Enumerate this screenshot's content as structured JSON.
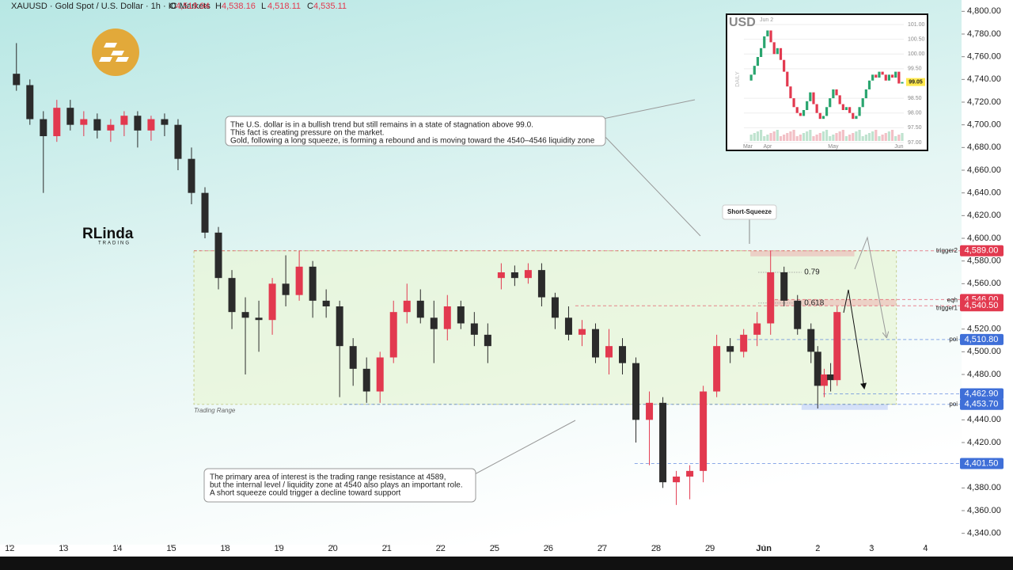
{
  "chart_data": {
    "type": "candlestick",
    "header": {
      "symbol": "XAUUSD · Gold Spot / U.S. Dollar · 1h · IC Markets",
      "ohlc": [
        {
          "key": "O",
          "value": "4,519.94"
        },
        {
          "key": "H",
          "value": "4,538.16"
        },
        {
          "key": "L",
          "value": "4,518.11"
        },
        {
          "key": "C",
          "value": "4,535.11"
        }
      ]
    },
    "brand": {
      "name": "RLinda",
      "sub": "TRADING"
    },
    "up_color": "#e2394f",
    "down_color": "#2b2b2b",
    "xlim": [
      -0.18,
      17.67
    ],
    "ylim": [
      4330,
      4810
    ],
    "xticks": [
      {
        "value": 0,
        "label": "12"
      },
      {
        "value": 1,
        "label": "13"
      },
      {
        "value": 2,
        "label": "14"
      },
      {
        "value": 3,
        "label": "15"
      },
      {
        "value": 4,
        "label": "18"
      },
      {
        "value": 5,
        "label": "19"
      },
      {
        "value": 6,
        "label": "20"
      },
      {
        "value": 7,
        "label": "21"
      },
      {
        "value": 8,
        "label": "22"
      },
      {
        "value": 9,
        "label": "25"
      },
      {
        "value": 10,
        "label": "26"
      },
      {
        "value": 11,
        "label": "27"
      },
      {
        "value": 12,
        "label": "28"
      },
      {
        "value": 13,
        "label": "29"
      },
      {
        "value": 14,
        "label": "Jun"
      },
      {
        "value": 15,
        "label": "2"
      },
      {
        "value": 16,
        "label": "3"
      },
      {
        "value": 17,
        "label": "4"
      }
    ],
    "yticks": [
      {
        "value": 4800,
        "label": "4,800.00"
      },
      {
        "value": 4780,
        "label": "4,780.00"
      },
      {
        "value": 4760,
        "label": "4,760.00"
      },
      {
        "value": 4740,
        "label": "4,740.00"
      },
      {
        "value": 4720,
        "label": "4,720.00"
      },
      {
        "value": 4700,
        "label": "4,700.00"
      },
      {
        "value": 4680,
        "label": "4,680.00"
      },
      {
        "value": 4660,
        "label": "4,660.00"
      },
      {
        "value": 4640,
        "label": "4,640.00"
      },
      {
        "value": 4620,
        "label": "4,620.00"
      },
      {
        "value": 4600,
        "label": "4,600.00"
      },
      {
        "value": 4580,
        "label": "4,580.00"
      },
      {
        "value": 4560,
        "label": "4,560.00"
      },
      {
        "value": 4540,
        "label": "4,540.00"
      },
      {
        "value": 4520,
        "label": "4,520.00"
      },
      {
        "value": 4500,
        "label": "4,500.00"
      },
      {
        "value": 4480,
        "label": "4,480.00"
      },
      {
        "value": 4460,
        "label": "4,460.00"
      },
      {
        "value": 4440,
        "label": "4,440.00"
      },
      {
        "value": 4420,
        "label": "4,420.00"
      },
      {
        "value": 4400,
        "label": "4,400.00"
      },
      {
        "value": 4380,
        "label": "4,380.00"
      },
      {
        "value": 4360,
        "label": "4,360.00"
      },
      {
        "value": 4340,
        "label": "4,340.00"
      }
    ],
    "candles": {
      "x": [
        0.125,
        0.375,
        0.625,
        0.875,
        1.125,
        1.375,
        1.625,
        1.875,
        2.125,
        2.375,
        2.625,
        2.875,
        3.125,
        3.375,
        3.625,
        3.875,
        4.125,
        4.375,
        4.625,
        4.875,
        5.125,
        5.375,
        5.625,
        5.875,
        6.125,
        6.375,
        6.625,
        6.875,
        7.125,
        7.375,
        7.625,
        7.875,
        8.125,
        8.375,
        8.625,
        8.875,
        9.125,
        9.375,
        9.625,
        9.875,
        10.125,
        10.375,
        10.625,
        10.875,
        11.125,
        11.375,
        11.625,
        11.875,
        12.125,
        12.375,
        12.625,
        12.875,
        13.125,
        13.375,
        13.625,
        13.875,
        14.125,
        14.375,
        14.625,
        14.875,
        15,
        15.12,
        15.24,
        15.36
      ],
      "ohlc": [
        [
          4745,
          4772,
          4730,
          4735
        ],
        [
          4735,
          4740,
          4700,
          4705
        ],
        [
          4705,
          4712,
          4640,
          4690
        ],
        [
          4690,
          4722,
          4685,
          4715
        ],
        [
          4715,
          4722,
          4695,
          4700
        ],
        [
          4700,
          4712,
          4690,
          4705
        ],
        [
          4705,
          4710,
          4688,
          4695
        ],
        [
          4695,
          4705,
          4685,
          4700
        ],
        [
          4700,
          4712,
          4690,
          4708
        ],
        [
          4708,
          4712,
          4680,
          4695
        ],
        [
          4695,
          4708,
          4686,
          4705
        ],
        [
          4705,
          4710,
          4690,
          4700
        ],
        [
          4700,
          4705,
          4660,
          4670
        ],
        [
          4670,
          4680,
          4630,
          4640
        ],
        [
          4640,
          4645,
          4600,
          4605
        ],
        [
          4605,
          4610,
          4555,
          4565
        ],
        [
          4565,
          4572,
          4520,
          4535
        ],
        [
          4535,
          4548,
          4480,
          4530
        ],
        [
          4530,
          4545,
          4500,
          4528
        ],
        [
          4528,
          4565,
          4515,
          4560
        ],
        [
          4560,
          4585,
          4540,
          4550
        ],
        [
          4550,
          4589,
          4545,
          4575
        ],
        [
          4575,
          4580,
          4530,
          4545
        ],
        [
          4545,
          4555,
          4530,
          4540
        ],
        [
          4540,
          4545,
          4460,
          4505
        ],
        [
          4505,
          4512,
          4470,
          4485
        ],
        [
          4485,
          4495,
          4455,
          4465
        ],
        [
          4465,
          4500,
          4455,
          4495
        ],
        [
          4495,
          4545,
          4490,
          4535
        ],
        [
          4535,
          4560,
          4525,
          4545
        ],
        [
          4545,
          4555,
          4525,
          4530
        ],
        [
          4530,
          4545,
          4490,
          4520
        ],
        [
          4520,
          4550,
          4510,
          4540
        ],
        [
          4540,
          4545,
          4520,
          4525
        ],
        [
          4525,
          4535,
          4505,
          4515
        ],
        [
          4515,
          4525,
          4490,
          4505
        ],
        [
          4565,
          4578,
          4555,
          4570
        ],
        [
          4570,
          4576,
          4558,
          4565
        ],
        [
          4565,
          4578,
          4560,
          4572
        ],
        [
          4572,
          4578,
          4540,
          4548
        ],
        [
          4548,
          4552,
          4520,
          4530
        ],
        [
          4530,
          4540,
          4510,
          4515
        ],
        [
          4515,
          4528,
          4505,
          4520
        ],
        [
          4520,
          4525,
          4490,
          4495
        ],
        [
          4495,
          4520,
          4480,
          4505
        ],
        [
          4505,
          4512,
          4480,
          4490
        ],
        [
          4490,
          4495,
          4420,
          4440
        ],
        [
          4440,
          4465,
          4400,
          4455
        ],
        [
          4455,
          4460,
          4380,
          4385
        ],
        [
          4385,
          4395,
          4365,
          4390
        ],
        [
          4390,
          4400,
          4370,
          4395
        ],
        [
          4395,
          4470,
          4385,
          4465
        ],
        [
          4465,
          4515,
          4460,
          4505
        ],
        [
          4505,
          4512,
          4490,
          4500
        ],
        [
          4500,
          4520,
          4495,
          4515
        ],
        [
          4515,
          4535,
          4505,
          4525
        ],
        [
          4525,
          4589,
          4515,
          4570
        ],
        [
          4570,
          4575,
          4540,
          4545
        ],
        [
          4545,
          4550,
          4515,
          4520
        ],
        [
          4520,
          4525,
          4490,
          4500
        ],
        [
          4500,
          4505,
          4450,
          4470
        ],
        [
          4470,
          4485,
          4460,
          4480
        ],
        [
          4480,
          4490,
          4465,
          4475
        ],
        [
          4475,
          4540,
          4470,
          4535
        ]
      ]
    },
    "range": {
      "label": "Trading Range",
      "top": 4589,
      "bottom": 4453.7,
      "x_from": 3.42,
      "x_to": 16.46
    },
    "levels": [
      {
        "value": 4589,
        "label": "4,589.00",
        "tag": "trigger2",
        "color": "#e2394f",
        "x_from": 3.42
      },
      {
        "value": 4546,
        "label": "4,546.00",
        "tag": "eqh",
        "color": "#e2394f",
        "x_from": 14.1
      },
      {
        "value": 4540.5,
        "label": "4,540.50",
        "tag": "trigger1",
        "color": "#e2394f",
        "x_from": 10.5
      },
      {
        "value": 4510.8,
        "label": "4,510.80",
        "tag": "poi",
        "color": "#3f6fd8",
        "x_from": 13.5
      },
      {
        "value": 4462.9,
        "label": "4,462.90",
        "color": "#3f6fd8",
        "x_from": 15.1
      },
      {
        "value": 4453.7,
        "label": "4,453.70",
        "tag": "poi",
        "color": "#3f6fd8",
        "x_from": 6.2
      },
      {
        "value": 4401.5,
        "label": "4,401.50",
        "color": "#3f6fd8",
        "x_from": 11.6
      }
    ],
    "fib": [
      {
        "value": 0.79,
        "level": 4570
      },
      {
        "value": 0.618,
        "level": 4543
      }
    ],
    "callout": "Short-Squeeze",
    "annotations": [
      {
        "lines": [
          "The U.S. dollar is in a bullish trend but still remains in a state of stagnation above 99.0.",
          "This fact is creating pressure on the market.",
          "Gold, following a long squeeze, is forming a rebound and is moving toward the 4540–4546 liquidity zone"
        ]
      },
      {
        "lines": [
          "The primary area of interest is the trading range resistance at 4589,",
          "but the internal level / liquidity zone at 4540 also plays an important role.",
          "A short squeeze could trigger a decline toward support"
        ]
      }
    ],
    "inset": {
      "title": "USD",
      "date": "Jun 2",
      "side": "DAILY",
      "value_label": "99.05",
      "ylim": [
        96.73,
        101.35
      ],
      "yticks": [
        {
          "value": 101,
          "label": "101.00"
        },
        {
          "value": 100.5,
          "label": "100.50"
        },
        {
          "value": 100,
          "label": "100.00"
        },
        {
          "value": 99.5,
          "label": "99.50"
        },
        {
          "value": 98.5,
          "label": "98.50"
        },
        {
          "value": 98,
          "label": "98.00"
        },
        {
          "value": 97.5,
          "label": "97.50"
        },
        {
          "value": 97,
          "label": "97.00"
        }
      ],
      "xticks": [
        {
          "value": 0,
          "label": "Mar"
        },
        {
          "value": 6,
          "label": "Apr"
        },
        {
          "value": 26,
          "label": "May"
        },
        {
          "value": 46,
          "label": "Jun"
        }
      ],
      "values": [
        99.1,
        99.3,
        99.6,
        99.9,
        100.2,
        100.6,
        100.8,
        100.4,
        100.0,
        100.2,
        99.8,
        99.4,
        98.9,
        98.5,
        98.2,
        98.0,
        97.9,
        98.1,
        98.4,
        98.7,
        98.3,
        98.0,
        97.8,
        97.9,
        98.2,
        98.5,
        98.8,
        98.6,
        98.3,
        98.1,
        98.2,
        98.0,
        97.8,
        97.9,
        98.2,
        98.5,
        98.8,
        99.1,
        99.3,
        99.2,
        99.4,
        99.3,
        99.1,
        99.3,
        99.2,
        99.4,
        99.0,
        99.05
      ]
    }
  }
}
